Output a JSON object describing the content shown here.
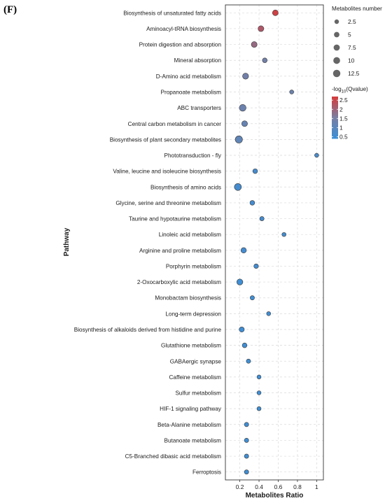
{
  "panel_label": "(F)",
  "chart_data": {
    "type": "scatter",
    "xlabel": "Metabolites Ratio",
    "ylabel": "Pathway",
    "xlim": [
      0.05,
      1.07
    ],
    "xticks": [
      0.2,
      0.4,
      0.6,
      0.8,
      1
    ],
    "xtick_labels": [
      "0.2",
      "0.4",
      "0.6",
      "0.8",
      "1"
    ],
    "grid": true,
    "legend_placement": "right",
    "size_legend": {
      "title": "Metabolites number",
      "values": [
        2.5,
        5,
        7.5,
        10,
        12.5
      ],
      "labels": [
        "2.5",
        "5",
        "7.5",
        "10",
        "12.5"
      ]
    },
    "color_legend": {
      "title_prefix": "-log",
      "title_sub": "10",
      "title_suffix": "(Qvalue)",
      "range": [
        0.4,
        2.7
      ],
      "ticks": [
        2.5,
        2,
        1.5,
        1,
        0.5
      ],
      "tick_labels": [
        "2.5",
        "2",
        "1.5",
        "1",
        "0.5"
      ],
      "low_color": "#3a8fd8",
      "mid_color": "#7a7ea2",
      "high_color": "#d63b3b"
    },
    "points": [
      {
        "pathway": "Biosynthesis of unsaturated fatty acids",
        "ratio": 0.57,
        "count": 7,
        "neglogq": 2.6
      },
      {
        "pathway": "Aminoacyl-tRNA biosynthesis",
        "ratio": 0.42,
        "count": 7,
        "neglogq": 2.2
      },
      {
        "pathway": "Protein digestion and absorption",
        "ratio": 0.35,
        "count": 7,
        "neglogq": 1.9
      },
      {
        "pathway": "Mineral absorption",
        "ratio": 0.46,
        "count": 4,
        "neglogq": 1.4
      },
      {
        "pathway": "D-Amino acid metabolism",
        "ratio": 0.26,
        "count": 8,
        "neglogq": 1.4
      },
      {
        "pathway": "Propanoate metabolism",
        "ratio": 0.74,
        "count": 2.5,
        "neglogq": 1.3
      },
      {
        "pathway": "ABC transporters",
        "ratio": 0.23,
        "count": 11,
        "neglogq": 1.3
      },
      {
        "pathway": "Central carbon metabolism in cancer",
        "ratio": 0.25,
        "count": 7,
        "neglogq": 1.2
      },
      {
        "pathway": "Biosynthesis of plant secondary metabolites",
        "ratio": 0.19,
        "count": 13,
        "neglogq": 1.1
      },
      {
        "pathway": "Phototransduction - fly",
        "ratio": 1.0,
        "count": 2.5,
        "neglogq": 0.7
      },
      {
        "pathway": "Valine, leucine and isoleucine biosynthesis",
        "ratio": 0.36,
        "count": 4,
        "neglogq": 0.6
      },
      {
        "pathway": "Biosynthesis of amino acids",
        "ratio": 0.18,
        "count": 12,
        "neglogq": 0.6
      },
      {
        "pathway": "Glycine, serine and threonine metabolism",
        "ratio": 0.33,
        "count": 4,
        "neglogq": 0.6
      },
      {
        "pathway": "Taurine and hypotaurine metabolism",
        "ratio": 0.43,
        "count": 3,
        "neglogq": 0.6
      },
      {
        "pathway": "Linoleic acid metabolism",
        "ratio": 0.66,
        "count": 2.5,
        "neglogq": 0.6
      },
      {
        "pathway": "Arginine and proline metabolism",
        "ratio": 0.24,
        "count": 6,
        "neglogq": 0.6
      },
      {
        "pathway": "Porphyrin metabolism",
        "ratio": 0.37,
        "count": 3.5,
        "neglogq": 0.6
      },
      {
        "pathway": "2-Oxocarboxylic acid metabolism",
        "ratio": 0.2,
        "count": 8,
        "neglogq": 0.5
      },
      {
        "pathway": "Monobactam biosynthesis",
        "ratio": 0.33,
        "count": 3,
        "neglogq": 0.5
      },
      {
        "pathway": "Long-term depression",
        "ratio": 0.5,
        "count": 2.5,
        "neglogq": 0.5
      },
      {
        "pathway": "Biosynthesis of alkaloids derived from histidine and purine",
        "ratio": 0.22,
        "count": 5,
        "neglogq": 0.5
      },
      {
        "pathway": "Glutathione metabolism",
        "ratio": 0.25,
        "count": 4,
        "neglogq": 0.5
      },
      {
        "pathway": "GABAergic synapse",
        "ratio": 0.29,
        "count": 3,
        "neglogq": 0.5
      },
      {
        "pathway": "Caffeine metabolism",
        "ratio": 0.4,
        "count": 2.5,
        "neglogq": 0.5
      },
      {
        "pathway": "Sulfur metabolism",
        "ratio": 0.4,
        "count": 2.5,
        "neglogq": 0.5
      },
      {
        "pathway": "HIF-1 signaling pathway",
        "ratio": 0.4,
        "count": 2.5,
        "neglogq": 0.5
      },
      {
        "pathway": "Beta-Alanine metabolism",
        "ratio": 0.27,
        "count": 3,
        "neglogq": 0.5
      },
      {
        "pathway": "Butanoate metabolism",
        "ratio": 0.27,
        "count": 3,
        "neglogq": 0.5
      },
      {
        "pathway": "C5-Branched dibasic acid metabolism",
        "ratio": 0.27,
        "count": 3,
        "neglogq": 0.5
      },
      {
        "pathway": "Ferroptosis",
        "ratio": 0.27,
        "count": 3,
        "neglogq": 0.5
      }
    ]
  }
}
